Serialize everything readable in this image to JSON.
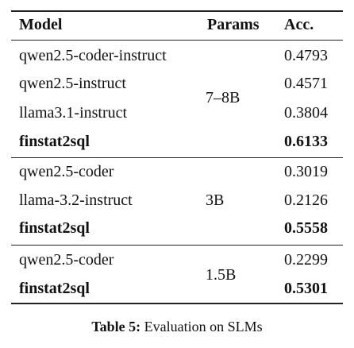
{
  "table": {
    "headers": {
      "model": "Model",
      "params": "Params",
      "acc": "Acc."
    },
    "groups": [
      {
        "params": "7–8B",
        "rows": [
          {
            "model": "qwen2.5-coder-instruct",
            "acc": "0.4793",
            "bold": false
          },
          {
            "model": "qwen2.5-instruct",
            "acc": "0.4571",
            "bold": false
          },
          {
            "model": "llama3.1-instruct",
            "acc": "0.3804",
            "bold": false
          },
          {
            "model": "finstat2sql",
            "acc": "0.6133",
            "bold": true
          }
        ]
      },
      {
        "params": "3B",
        "rows": [
          {
            "model": "qwen2.5-coder",
            "acc": "0.3019",
            "bold": false
          },
          {
            "model": "llama-3.2-instruct",
            "acc": "0.2126",
            "bold": false
          },
          {
            "model": "finstat2sql",
            "acc": "0.5558",
            "bold": true
          }
        ]
      },
      {
        "params": "1.5B",
        "rows": [
          {
            "model": "qwen2.5-coder",
            "acc": "0.2299",
            "bold": false
          },
          {
            "model": "finstat2sql",
            "acc": "0.5301",
            "bold": true
          }
        ]
      }
    ]
  },
  "caption": {
    "label": "Table 5:",
    "text": "Evaluation on SLMs"
  }
}
